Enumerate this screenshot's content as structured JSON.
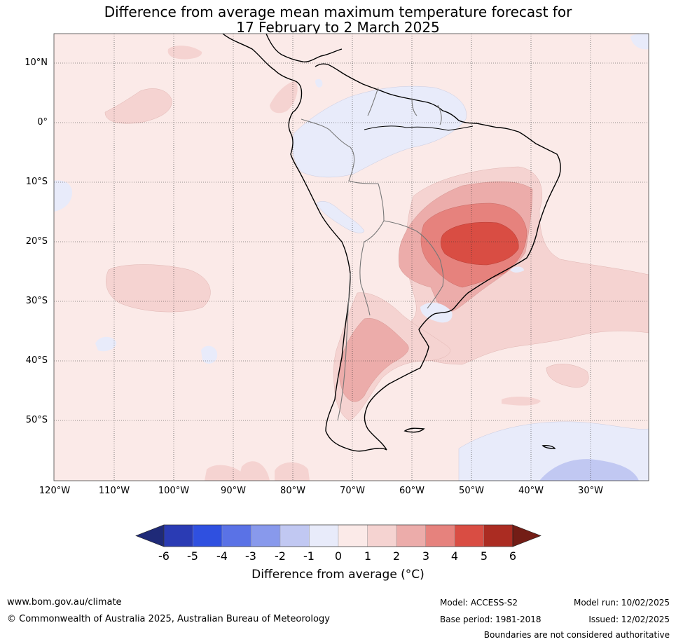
{
  "title": {
    "line1": "Difference from average mean maximum temperature forecast for",
    "line2": "17 February to 2 March 2025"
  },
  "map": {
    "lat_labels": [
      "10°N",
      "0°",
      "10°S",
      "20°S",
      "30°S",
      "40°S",
      "50°S"
    ],
    "lon_labels": [
      "120°W",
      "110°W",
      "100°W",
      "90°W",
      "80°W",
      "70°W",
      "60°W",
      "50°W",
      "40°W",
      "30°W"
    ],
    "background_anomaly_bin": "0 to 1"
  },
  "colorbar": {
    "ticks": [
      "-6",
      "-5",
      "-4",
      "-3",
      "-2",
      "-1",
      "0",
      "1",
      "2",
      "3",
      "4",
      "5",
      "6"
    ],
    "colors": [
      "#1f2a78",
      "#2a3bb4",
      "#2f50e0",
      "#5a72e6",
      "#8899ec",
      "#c1c8f2",
      "#e8ebfa",
      "#fbeae8",
      "#f5d3d1",
      "#ecacaa",
      "#e6827d",
      "#d94d43",
      "#ab2c22",
      "#731d16"
    ],
    "label": "Difference from average (°C)"
  },
  "footer": {
    "website": "www.bom.gov.au/climate",
    "copyright": "© Commonwealth of Australia 2025, Australian Bureau of Meteorology",
    "model": "Model: ACCESS-S2",
    "base_period": "Base period: 1981-2018",
    "model_run": "Model run: 10/02/2025",
    "issued": "Issued: 12/02/2025",
    "disclaimer": "Boundaries are not considered authoritative"
  }
}
